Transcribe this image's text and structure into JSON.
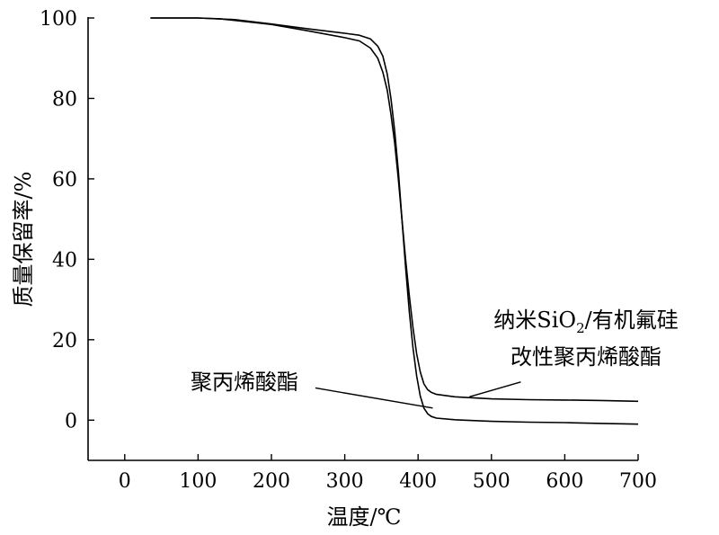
{
  "chart_data": {
    "type": "line",
    "title": "",
    "xlabel": "温度/℃",
    "ylabel": "质量保留率/%",
    "xlim": [
      -50,
      700
    ],
    "ylim": [
      -10,
      100
    ],
    "xticks": [
      0,
      100,
      200,
      300,
      400,
      500,
      600,
      700
    ],
    "yticks": [
      0,
      20,
      40,
      60,
      80,
      100
    ],
    "grid": false,
    "legend": "none",
    "series": [
      {
        "label_lines": [
          "聚丙烯酸酯"
        ],
        "color": "#000000",
        "points": [
          [
            35,
            100
          ],
          [
            100,
            100
          ],
          [
            150,
            99.6
          ],
          [
            200,
            98.5
          ],
          [
            250,
            97.3
          ],
          [
            300,
            96.2
          ],
          [
            320,
            95.7
          ],
          [
            335,
            94.8
          ],
          [
            345,
            93
          ],
          [
            352,
            90.5
          ],
          [
            358,
            86
          ],
          [
            363,
            80
          ],
          [
            368,
            72
          ],
          [
            373,
            62
          ],
          [
            378,
            50
          ],
          [
            383,
            38
          ],
          [
            388,
            27
          ],
          [
            393,
            18
          ],
          [
            398,
            11
          ],
          [
            403,
            6
          ],
          [
            408,
            3
          ],
          [
            413,
            1.6
          ],
          [
            418,
            0.9
          ],
          [
            425,
            0.5
          ],
          [
            450,
            0.1
          ],
          [
            500,
            -0.3
          ],
          [
            550,
            -0.5
          ],
          [
            600,
            -0.6
          ],
          [
            650,
            -0.8
          ],
          [
            700,
            -1
          ]
        ]
      },
      {
        "label_lines": [
          "纳米SiO",
          "2",
          "/有机氟硅",
          "改性聚丙烯酸酯"
        ],
        "color": "#000000",
        "points": [
          [
            35,
            100
          ],
          [
            100,
            100
          ],
          [
            130,
            99.8
          ],
          [
            150,
            99.4
          ],
          [
            200,
            98.4
          ],
          [
            250,
            96.8
          ],
          [
            300,
            95.1
          ],
          [
            320,
            94.3
          ],
          [
            335,
            92.5
          ],
          [
            345,
            90
          ],
          [
            352,
            86.5
          ],
          [
            358,
            82
          ],
          [
            363,
            76
          ],
          [
            368,
            69
          ],
          [
            373,
            60
          ],
          [
            378,
            50
          ],
          [
            383,
            40
          ],
          [
            388,
            31
          ],
          [
            393,
            23
          ],
          [
            398,
            16.5
          ],
          [
            403,
            12
          ],
          [
            408,
            9
          ],
          [
            413,
            7.6
          ],
          [
            418,
            6.9
          ],
          [
            425,
            6.4
          ],
          [
            450,
            5.8
          ],
          [
            500,
            5.3
          ],
          [
            550,
            5.1
          ],
          [
            600,
            5
          ],
          [
            650,
            4.9
          ],
          [
            700,
            4.7
          ]
        ]
      }
    ],
    "annotations": [
      {
        "text": "聚丙烯酸酯",
        "leader_from": [
          260,
          8
        ],
        "leader_to": [
          420,
          3
        ]
      },
      {
        "text_lines": [
          "纳米SiO",
          "2",
          "/有机氟硅",
          "改性聚丙烯酸酯"
        ],
        "leader_from": [
          470,
          5.8
        ],
        "leader_to": [
          540,
          9.5
        ]
      }
    ]
  }
}
